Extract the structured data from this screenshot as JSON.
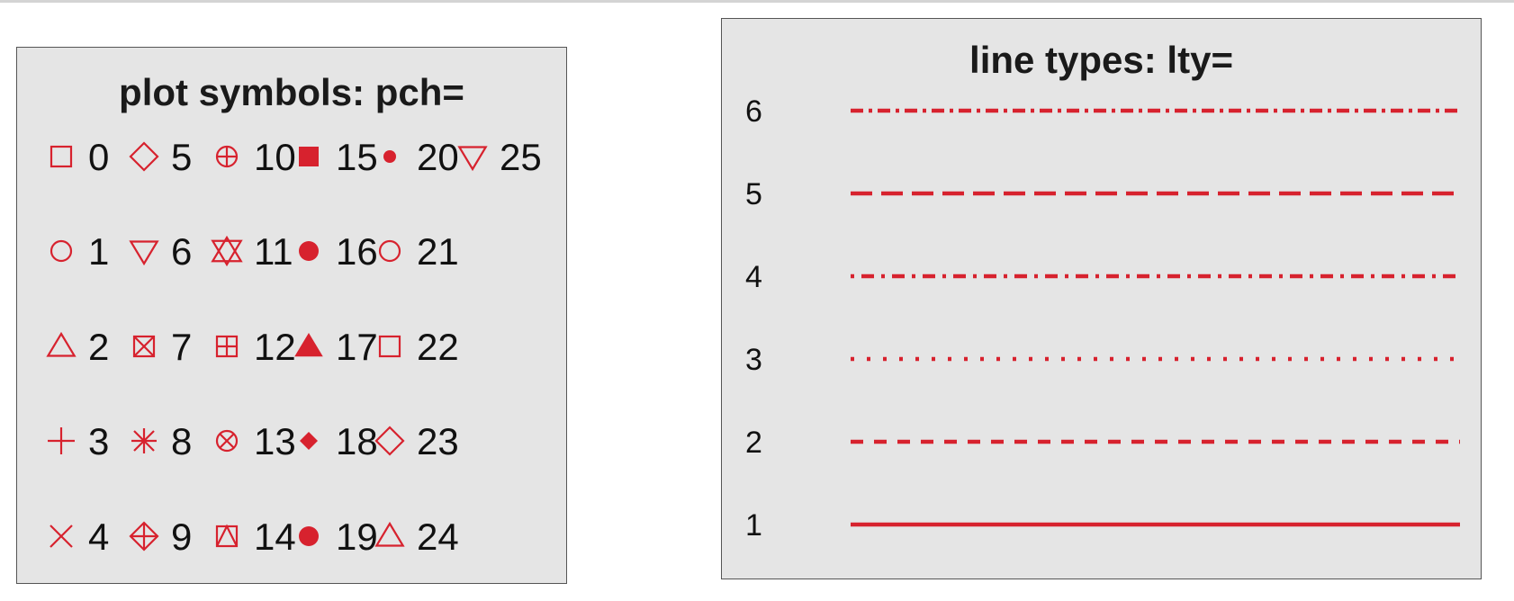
{
  "colors": {
    "accent": "#d7222e",
    "panel": "#e5e5e5",
    "border": "#555555",
    "text": "#111111"
  },
  "pch_panel": {
    "title": "plot symbols: pch=",
    "columns": [
      [
        {
          "code": "0",
          "shape": "square-open"
        },
        {
          "code": "1",
          "shape": "circle-open"
        },
        {
          "code": "2",
          "shape": "triangle-up-open"
        },
        {
          "code": "3",
          "shape": "plus"
        },
        {
          "code": "4",
          "shape": "cross"
        }
      ],
      [
        {
          "code": "5",
          "shape": "diamond-open"
        },
        {
          "code": "6",
          "shape": "triangle-down-open"
        },
        {
          "code": "7",
          "shape": "square-cross"
        },
        {
          "code": "8",
          "shape": "asterisk"
        },
        {
          "code": "9",
          "shape": "diamond-plus"
        }
      ],
      [
        {
          "code": "10",
          "shape": "circle-plus"
        },
        {
          "code": "11",
          "shape": "star-of-david"
        },
        {
          "code": "12",
          "shape": "square-plus"
        },
        {
          "code": "13",
          "shape": "circle-cross"
        },
        {
          "code": "14",
          "shape": "square-triangle"
        }
      ],
      [
        {
          "code": "15",
          "shape": "square-filled"
        },
        {
          "code": "16",
          "shape": "circle-filled"
        },
        {
          "code": "17",
          "shape": "triangle-up-filled"
        },
        {
          "code": "18",
          "shape": "diamond-filled-small"
        },
        {
          "code": "19",
          "shape": "circle-filled"
        }
      ],
      [
        {
          "code": "20",
          "shape": "circle-filled-small"
        },
        {
          "code": "21",
          "shape": "circle-open"
        },
        {
          "code": "22",
          "shape": "square-open"
        },
        {
          "code": "23",
          "shape": "diamond-open"
        },
        {
          "code": "24",
          "shape": "triangle-up-open"
        }
      ],
      [
        {
          "code": "25",
          "shape": "triangle-down-open"
        }
      ]
    ]
  },
  "lty_panel": {
    "title": "line types: lty=",
    "lines": [
      {
        "code": "6",
        "dash": "14 6 4 6"
      },
      {
        "code": "5",
        "dash": "24 10"
      },
      {
        "code": "4",
        "dash": "4 8 14 8"
      },
      {
        "code": "3",
        "dash": "4 14"
      },
      {
        "code": "2",
        "dash": "14 12"
      },
      {
        "code": "1",
        "dash": "none"
      }
    ]
  }
}
